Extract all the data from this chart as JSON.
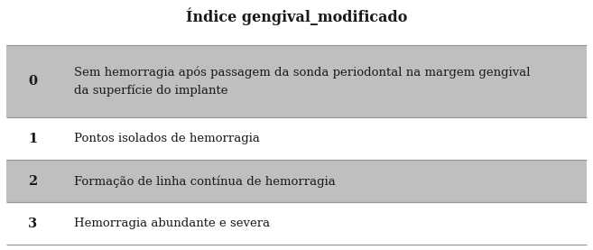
{
  "title": "Índice gengival_modificado",
  "title_fontsize": 11.5,
  "rows": [
    {
      "index": "0",
      "text": "Sem hemorragia após passagem da sonda periodontal na margem gengival\nda superfície do implante",
      "shaded": true,
      "tall": true
    },
    {
      "index": "1",
      "text": "Pontos isolados de hemorragia",
      "shaded": false,
      "tall": false
    },
    {
      "index": "2",
      "text": "Formação de linha contínua de hemorragia",
      "shaded": true,
      "tall": false
    },
    {
      "index": "3",
      "text": "Hemorragia abundante e severa",
      "shaded": false,
      "tall": false
    }
  ],
  "shaded_color": "#bfbfbf",
  "bg_color": "#ffffff",
  "border_color": "#999999",
  "text_color": "#1a1a1a",
  "font_size": 9.5,
  "index_font_size": 10.5,
  "table_bg": "#e8e8e8",
  "fig_width": 6.57,
  "fig_height": 2.77
}
